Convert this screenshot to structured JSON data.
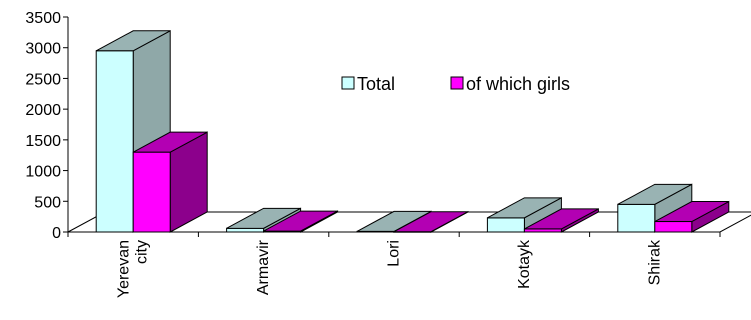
{
  "chart_data": {
    "type": "bar",
    "title": "",
    "xlabel": "",
    "ylabel": "",
    "ylim": [
      0,
      3500
    ],
    "yticks": [
      0,
      500,
      1000,
      1500,
      2000,
      2500,
      3000,
      3500
    ],
    "categories": [
      [
        "Yerevan",
        "city"
      ],
      [
        "Armavir"
      ],
      [
        "Lori"
      ],
      [
        "Kotayk"
      ],
      [
        "Shirak"
      ]
    ],
    "series": [
      {
        "name": "Total",
        "values": [
          2950,
          60,
          10,
          230,
          450
        ],
        "color": "#ccffff",
        "top_color": "#99b3b3",
        "side_color": "#8fa8a8"
      },
      {
        "name": "of which girls",
        "values": [
          1300,
          15,
          5,
          50,
          170
        ],
        "color": "#ff00ff",
        "top_color": "#b300b3",
        "side_color": "#8c008c"
      }
    ],
    "legend_position": "top-right",
    "grid": false,
    "three_d": true
  }
}
